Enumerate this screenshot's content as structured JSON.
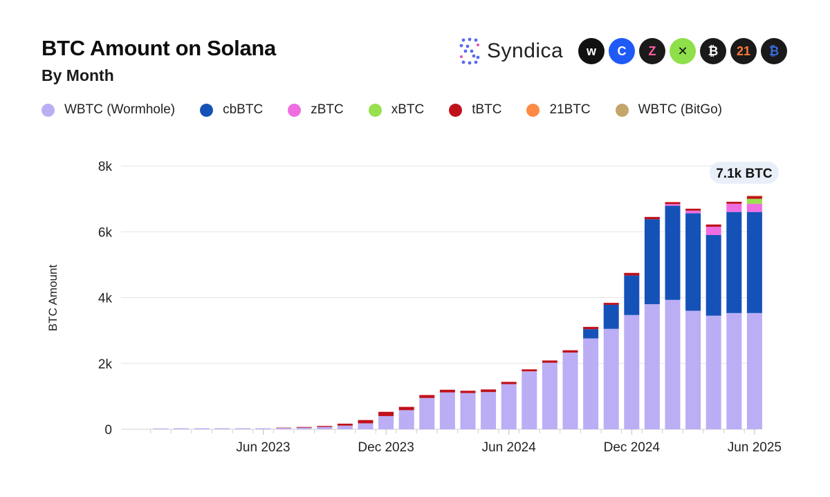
{
  "header": {
    "title": "BTC Amount on Solana",
    "subtitle": "By Month",
    "brand": "Syndica"
  },
  "logos": [
    {
      "name": "wormhole-logo-icon",
      "text": "w",
      "bg": "#111111",
      "fg": "#ffffff"
    },
    {
      "name": "coinbase-logo-icon",
      "text": "C",
      "bg": "#1f5af6",
      "fg": "#ffffff"
    },
    {
      "name": "zeus-logo-icon",
      "text": "Z",
      "bg": "#1a1a1a",
      "fg": "#ff5fa2"
    },
    {
      "name": "okx-logo-icon",
      "text": "✕",
      "bg": "#8ee04a",
      "fg": "#111111"
    },
    {
      "name": "threshold-logo-icon",
      "text": "₿",
      "bg": "#1a1a1a",
      "fg": "#ffffff"
    },
    {
      "name": "21shares-logo-icon",
      "text": "21",
      "bg": "#1a1a1a",
      "fg": "#ff7a3a"
    },
    {
      "name": "bitgo-logo-icon",
      "text": "₿",
      "bg": "#1a1a1a",
      "fg": "#3a6ad8"
    }
  ],
  "colors": {
    "WBTC (Wormhole)": "#bbaef5",
    "cbBTC": "#1552b8",
    "zBTC": "#ee6ee2",
    "xBTC": "#98e04d",
    "tBTC": "#c0111b",
    "21BTC": "#ff8a45",
    "WBTC (BitGo)": "#c3a66a"
  },
  "chart_data": {
    "type": "bar",
    "stacked": true,
    "ylabel": "BTC Amount",
    "xlabel": "",
    "ylim": [
      0,
      8000
    ],
    "yticks": [
      0,
      2000,
      4000,
      6000,
      8000
    ],
    "ytick_labels": [
      "0",
      "2k",
      "4k",
      "6k",
      "8k"
    ],
    "grid": true,
    "legend_position": "top-left",
    "categories": [
      "Jan 2023",
      "Feb 2023",
      "Mar 2023",
      "Apr 2023",
      "May 2023",
      "Jun 2023",
      "Jul 2023",
      "Aug 2023",
      "Sep 2023",
      "Oct 2023",
      "Nov 2023",
      "Dec 2023",
      "Jan 2024",
      "Feb 2024",
      "Mar 2024",
      "Apr 2024",
      "May 2024",
      "Jun 2024",
      "Jul 2024",
      "Aug 2024",
      "Sep 2024",
      "Oct 2024",
      "Nov 2024",
      "Dec 2024",
      "Jan 2025",
      "Feb 2025",
      "Mar 2025",
      "Apr 2025",
      "May 2025",
      "Jun 2025"
    ],
    "xtick_labels": [
      {
        "index": 5,
        "label": "Jun 2023"
      },
      {
        "index": 11,
        "label": "Dec 2023"
      },
      {
        "index": 17,
        "label": "Jun 2024"
      },
      {
        "index": 23,
        "label": "Dec 2024"
      },
      {
        "index": 29,
        "label": "Jun 2025"
      }
    ],
    "series": [
      {
        "name": "WBTC (Wormhole)",
        "values": [
          25,
          30,
          30,
          30,
          30,
          30,
          40,
          50,
          70,
          110,
          180,
          400,
          580,
          950,
          1120,
          1100,
          1130,
          1370,
          1760,
          2020,
          2330,
          2760,
          3050,
          3470,
          3800,
          3930,
          3600,
          3450,
          3530,
          3530
        ]
      },
      {
        "name": "cbBTC",
        "values": [
          0,
          0,
          0,
          0,
          0,
          0,
          0,
          0,
          0,
          0,
          0,
          0,
          0,
          0,
          0,
          0,
          0,
          0,
          0,
          0,
          0,
          280,
          730,
          1200,
          2580,
          2860,
          2960,
          2450,
          3070,
          3070
        ]
      },
      {
        "name": "zBTC",
        "values": [
          0,
          0,
          0,
          0,
          0,
          0,
          0,
          0,
          0,
          0,
          0,
          0,
          0,
          0,
          0,
          0,
          0,
          0,
          0,
          0,
          0,
          0,
          0,
          0,
          0,
          50,
          80,
          250,
          250,
          250
        ]
      },
      {
        "name": "xBTC",
        "values": [
          0,
          0,
          0,
          0,
          0,
          0,
          0,
          0,
          0,
          0,
          0,
          0,
          0,
          0,
          0,
          0,
          0,
          0,
          0,
          0,
          0,
          0,
          0,
          0,
          0,
          0,
          0,
          0,
          0,
          150
        ]
      },
      {
        "name": "tBTC",
        "values": [
          0,
          0,
          0,
          0,
          0,
          0,
          10,
          20,
          30,
          60,
          100,
          130,
          100,
          90,
          80,
          70,
          80,
          70,
          60,
          70,
          70,
          70,
          60,
          80,
          70,
          60,
          60,
          70,
          60,
          80
        ]
      },
      {
        "name": "21BTC",
        "values": [
          0,
          0,
          0,
          0,
          0,
          0,
          0,
          0,
          0,
          0,
          0,
          0,
          0,
          0,
          0,
          0,
          0,
          0,
          0,
          0,
          0,
          0,
          0,
          0,
          0,
          0,
          0,
          0,
          0,
          10
        ]
      },
      {
        "name": "WBTC (BitGo)",
        "values": [
          0,
          0,
          0,
          0,
          0,
          0,
          0,
          0,
          0,
          0,
          0,
          0,
          0,
          0,
          0,
          0,
          0,
          0,
          0,
          0,
          0,
          0,
          0,
          0,
          0,
          0,
          0,
          0,
          0,
          10
        ]
      }
    ],
    "annotation": {
      "index": 29,
      "text": "7.1k BTC"
    }
  }
}
